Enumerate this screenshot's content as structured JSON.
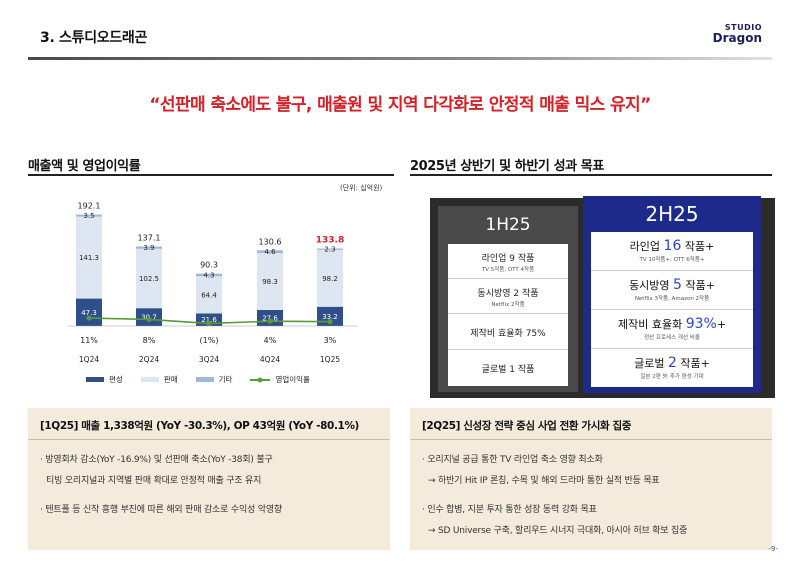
{
  "header": {
    "section_title": "3. 스튜디오드래곤",
    "logo_line1": "STUDIO",
    "logo_line2": "Dragon"
  },
  "headline": "“선판매 축소에도 불구, 매출원 및 지역 다각화로 안정적 매출 믹스 유지”",
  "left_section": {
    "title": "매출액 및 영업이익률",
    "unit": "(단위: 십억원)",
    "legend": [
      "편성",
      "판매",
      "기타",
      "영업이익률"
    ]
  },
  "chart_data": {
    "type": "bar",
    "stacked": true,
    "categories": [
      "1Q24",
      "2Q24",
      "3Q24",
      "4Q24",
      "1Q25"
    ],
    "series": [
      {
        "name": "편성",
        "values": [
          47.3,
          30.7,
          21.6,
          27.6,
          33.2
        ],
        "color": "#2f4f88"
      },
      {
        "name": "판매",
        "values": [
          141.3,
          102.5,
          64.4,
          98.3,
          98.2
        ],
        "color": "#dde6f1"
      },
      {
        "name": "기타",
        "values": [
          3.5,
          3.9,
          4.3,
          4.6,
          2.3
        ],
        "color": "#9fb7d9"
      }
    ],
    "totals": [
      "192.1",
      "137.1",
      "90.3",
      "130.6",
      "133.8"
    ],
    "line_series": {
      "name": "영업이익률",
      "values": [
        11,
        8,
        -1,
        4,
        3
      ],
      "labels": [
        "11%",
        "8%",
        "(1%)",
        "4%",
        "3%"
      ],
      "color": "#5a9a3a"
    },
    "highlight_total_color": "#d42026"
  },
  "right_section": {
    "title": "2025년 상반기 및 하반기 성과 목표",
    "h1": {
      "label": "1H25",
      "rows": [
        {
          "main": "라인업 9 작품",
          "sub": "TV 5작품, OTT 4작품"
        },
        {
          "main": "동시방영 2 작품",
          "sub": "Netflix 2작품"
        },
        {
          "main": "제작비 효율화 75%",
          "sub": ""
        },
        {
          "main": "글로벌 1 작품",
          "sub": ""
        }
      ]
    },
    "h2": {
      "label": "2H25",
      "rows": [
        {
          "pre": "라인업 ",
          "num": "16",
          "post": " 작품+",
          "sub": "TV 10작품+, OTT 6작품+"
        },
        {
          "pre": "동시방영 ",
          "num": "5",
          "post": " 작품+",
          "sub": "Netflix 3작품, Amazon 2작품"
        },
        {
          "pre": "제작비 효율화 ",
          "num": "93%",
          "post": "+",
          "sub": "정산 프로세스 개선 비율"
        },
        {
          "pre": "글로벌 ",
          "num": "2",
          "post": " 작품+",
          "sub": "일본 2편 外 추가 편성 기대"
        }
      ]
    }
  },
  "box_left": {
    "title": "[1Q25] 매출 1,338억원 (YoY -30.3%), OP 43억원 (YoY -80.1%)",
    "lines": [
      "· 방영회차 감소(YoY -16.9%) 및 선판매 축소(YoY -38회) 불구",
      "티빙 오리지널과 지역별 판매 확대로 안정적 매출 구조 유지",
      "· 텐트폴 등 신작 흥행 부진에 따른 해외 판매 감소로 수익성 악영향"
    ]
  },
  "box_right": {
    "title": "[2Q25] 신성장 전략 중심 사업 전환 가시화 집중",
    "lines": [
      "· 오리지널 공급 통한 TV 라인업 축소 영향 최소화",
      "→ 하반기 Hit IP 론칭, 수목 및 해외 드라마 통한 실적 반등 목표",
      "· 인수 합병, 지분 투자 통한 성장 동력 강화 목표",
      "→ SD Universe 구축, 할리우드 시너지 극대화, 아시아 허브 확보 집중"
    ]
  },
  "page_number": "-9-"
}
